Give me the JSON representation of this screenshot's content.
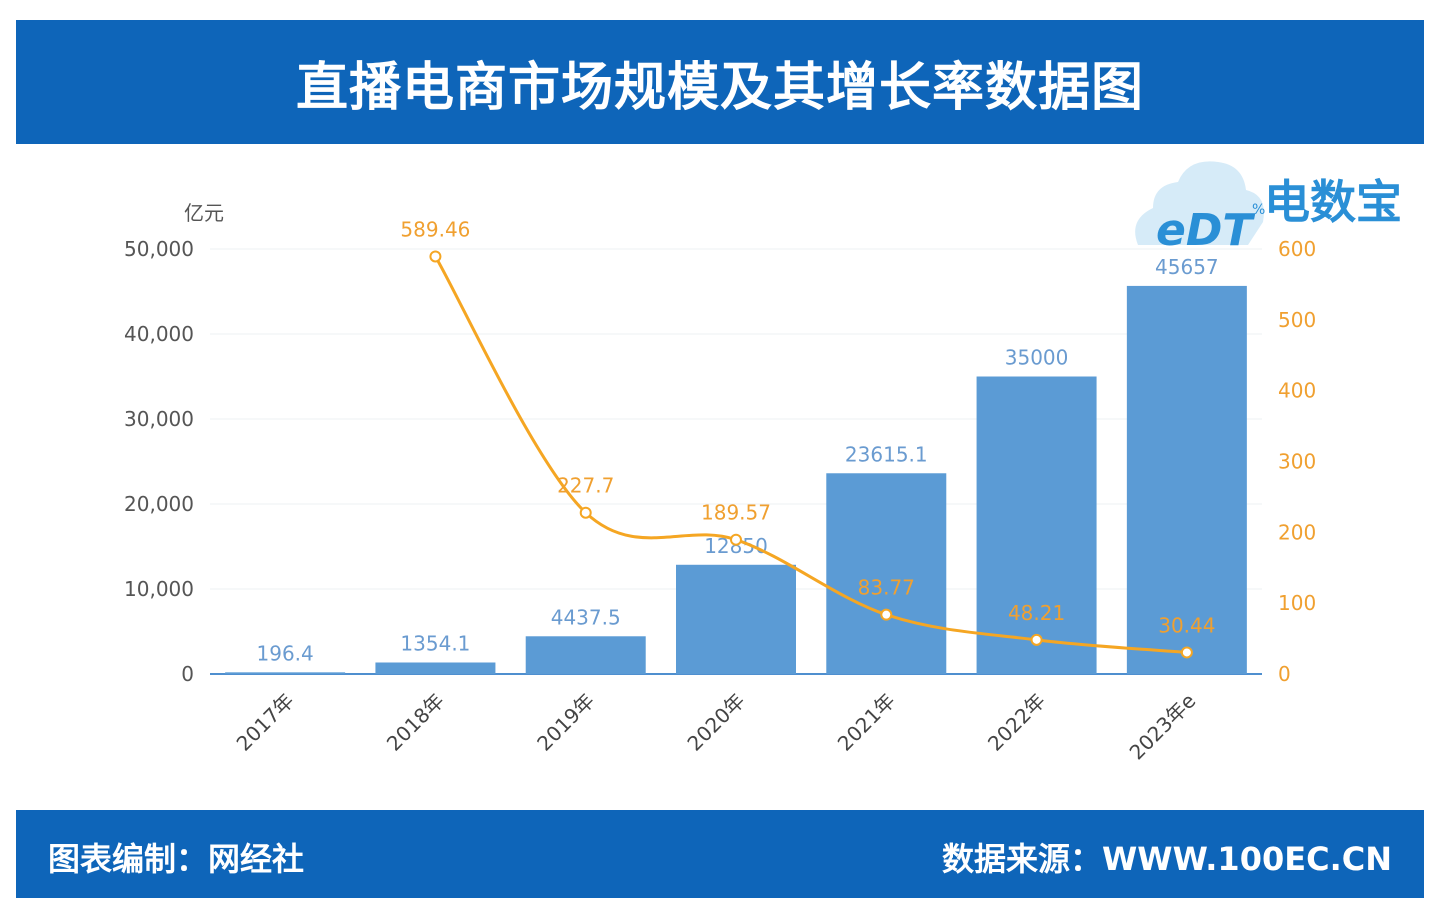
{
  "header": {
    "title": "直播电商市场规模及其增长率数据图"
  },
  "footer": {
    "left": "图表编制：网经社",
    "right": "数据来源：WWW.100EC.CN"
  },
  "logo": {
    "brand": "电数宝",
    "mark": "eDT",
    "pct_symbol": "%"
  },
  "colors": {
    "brand_blue": "#0e65b9",
    "bar_blue": "#5b9bd5",
    "line_orange": "#f5a623",
    "label_blue": "#6a9bd0",
    "label_orange": "#f0a030"
  },
  "chart_data": {
    "type": "bar",
    "ylabel": "亿元",
    "categories": [
      "2017年",
      "2018年",
      "2019年",
      "2020年",
      "2021年",
      "2022年",
      "2023年e"
    ],
    "series": [
      {
        "values": [
          196.4,
          1354.1,
          4437.5,
          12850,
          23615.1,
          35000,
          45657
        ],
        "labels": [
          "196.4",
          "1354.1",
          "4437.5",
          "12850",
          "23615.1",
          "35000",
          "45657"
        ]
      },
      {
        "type": "line",
        "axis": "right",
        "values": [
          null,
          589.46,
          227.7,
          189.57,
          83.77,
          48.21,
          30.44
        ],
        "labels": [
          "",
          "589.46",
          "227.7",
          "189.57",
          "83.77",
          "48.21",
          "30.44"
        ]
      }
    ],
    "ylim": [
      0,
      50000
    ],
    "yticks": [
      "0",
      "10,000",
      "20,000",
      "30,000",
      "40,000",
      "50,000"
    ],
    "ylim_right": [
      0,
      600
    ],
    "yticks_right": [
      "0",
      "100",
      "200",
      "300",
      "400",
      "500",
      "600"
    ],
    "grid": true,
    "legend": "none"
  }
}
